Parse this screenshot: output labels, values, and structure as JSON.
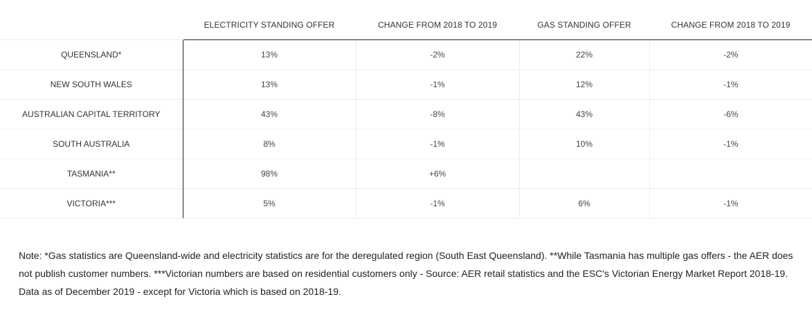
{
  "table": {
    "headers": [
      "",
      "ELECTRICITY STANDING OFFER",
      "CHANGE FROM 2018 TO 2019",
      "GAS STANDING OFFER",
      "CHANGE FROM 2018 TO 2019"
    ],
    "rows": [
      {
        "region": "QUEENSLAND*",
        "elec": "13%",
        "elec_change": "-2%",
        "gas": "22%",
        "gas_change": "-2%"
      },
      {
        "region": "NEW SOUTH WALES",
        "elec": "13%",
        "elec_change": "-1%",
        "gas": "12%",
        "gas_change": "-1%"
      },
      {
        "region": "AUSTRALIAN CAPITAL TERRITORY",
        "elec": "43%",
        "elec_change": "-8%",
        "gas": "43%",
        "gas_change": "-6%"
      },
      {
        "region": "SOUTH AUSTRALIA",
        "elec": "8%",
        "elec_change": "-1%",
        "gas": "10%",
        "gas_change": "-1%"
      },
      {
        "region": "TASMANIA**",
        "elec": "98%",
        "elec_change": "+6%",
        "gas": "",
        "gas_change": ""
      },
      {
        "region": "VICTORIA***",
        "elec": "5%",
        "elec_change": "-1%",
        "gas": "6%",
        "gas_change": "-1%"
      }
    ]
  },
  "note": "Note: *Gas statistics are Queensland-wide and electricity statistics are for the deregulated region (South East Queensland). **While Tasmania has multiple gas offers - the AER does not publish customer numbers. ***Victorian numbers are based on residential customers only - Source: AER retail statistics and the ESC's Victorian Energy Market Report 2018-19. Data as of December 2019 - except for Victoria which is based on 2018-19."
}
